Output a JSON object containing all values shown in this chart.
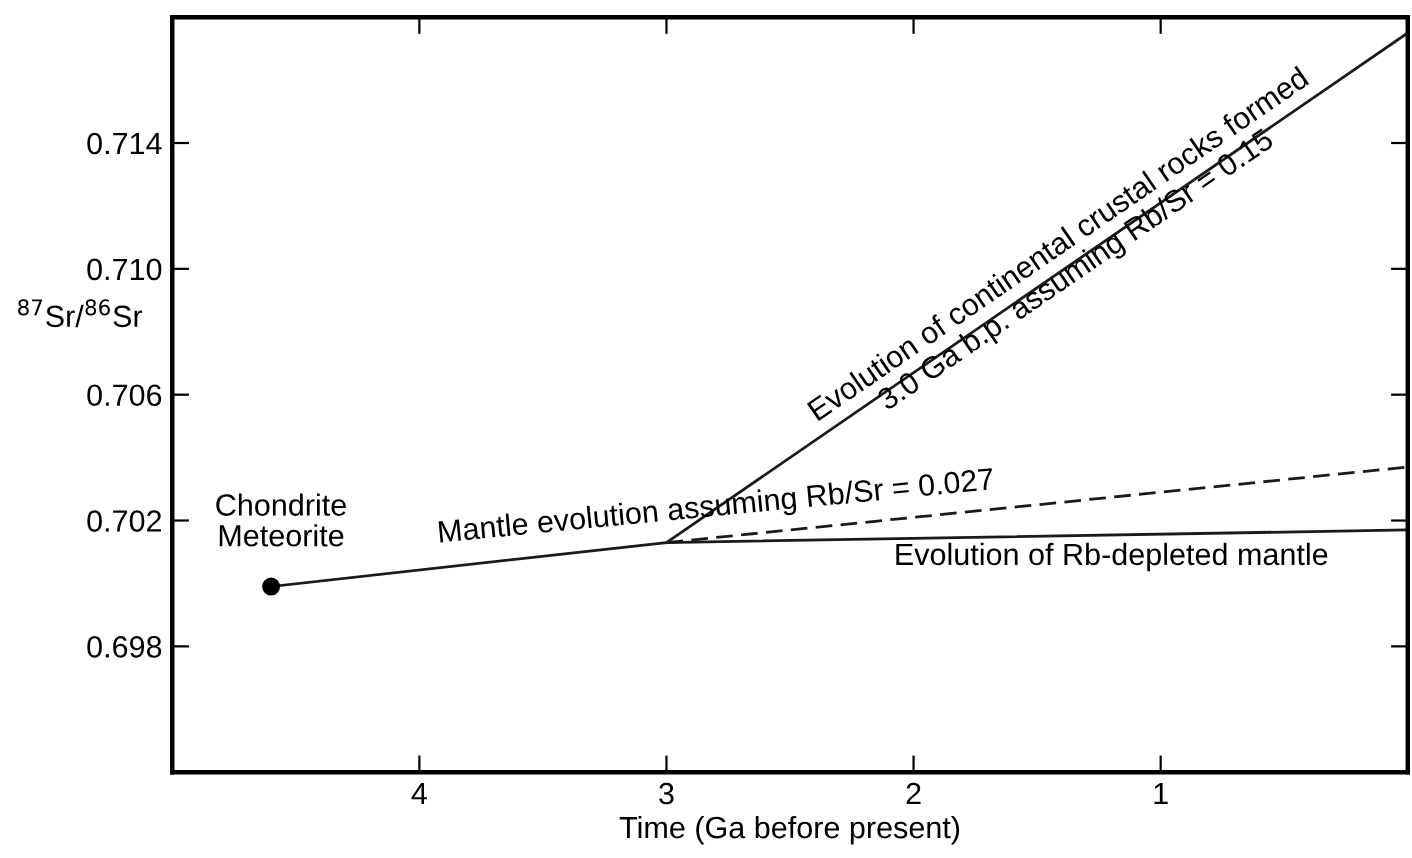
{
  "chart_data": {
    "type": "line",
    "xlabel": "Time (Ga before present)",
    "ylabel": "$^{87}$Sr/$^{86}$Sr",
    "xlim": [
      5.0,
      0.0
    ],
    "xticks": [
      4,
      3,
      2,
      1
    ],
    "ylim": [
      0.694,
      0.718
    ],
    "yticks": [
      0.698,
      0.702,
      0.706,
      {
        "value": 0.71,
        "label": "0.710"
      },
      0.714
    ],
    "series": [
      {
        "color": "#1a1a1a",
        "x": [
          4.6,
          3.0,
          0.0
        ],
        "values": [
          0.6999,
          0.7013,
          0.7017
        ],
        "line_style": "solid"
      },
      {
        "color": "#1a1a1a",
        "x": [
          3.0,
          0.0
        ],
        "values": [
          0.7013,
          0.7037
        ],
        "line_style": "dashed"
      },
      {
        "color": "#1a1a1a",
        "x": [
          3.0,
          0.0
        ],
        "values": [
          0.7013,
          0.7175
        ],
        "line_style": "solid"
      },
      {
        "type": "scatter",
        "color": "#000000",
        "x": [
          4.6
        ],
        "values": [
          0.6999
        ],
        "marker": "circle"
      }
    ],
    "annotations": [
      "Chondrite\nMeteorite",
      "Mantle evolution assuming Rb/Sr = 0.027",
      "Evolution of Rb-depleted mantle",
      "Evolution of continental crustal rocks formed\n3.0 Ga b.p. assuming Rb/Sr = 0.15"
    ]
  }
}
